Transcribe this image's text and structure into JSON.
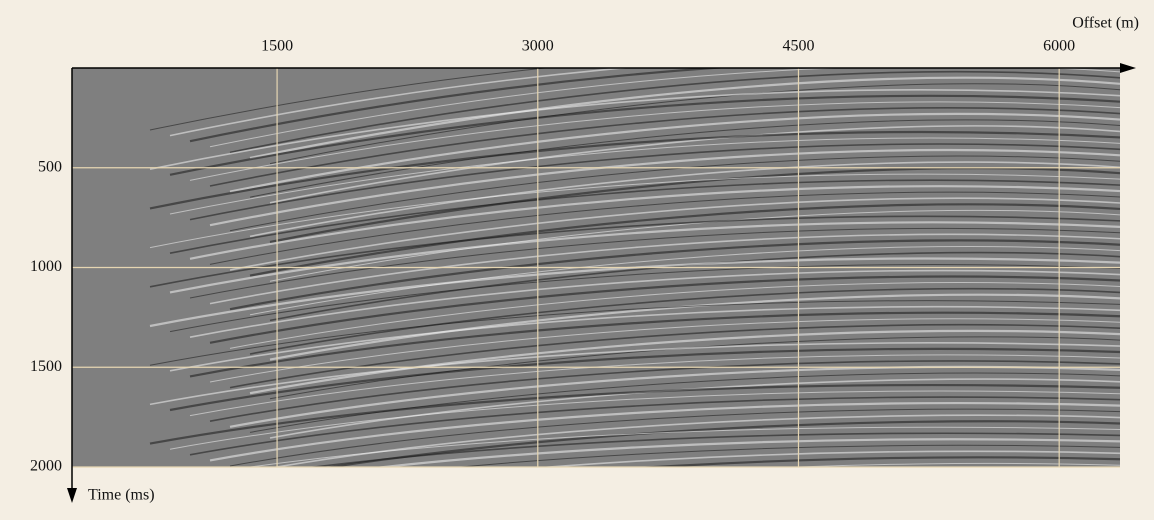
{
  "chart_data": {
    "type": "seismic-section",
    "x_label": "Offset (m)",
    "y_label": "Time (ms)",
    "xlim": [
      320,
      6350
    ],
    "xticks": [
      1500,
      3000,
      4500,
      6000
    ],
    "ylim": [
      0,
      2000
    ],
    "yticks": [
      500,
      1000,
      1500,
      2000
    ],
    "y_inverted": true,
    "grid": true
  }
}
